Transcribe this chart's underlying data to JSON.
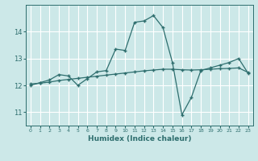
{
  "xlabel": "Humidex (Indice chaleur)",
  "bg_color": "#cce8e8",
  "grid_color": "#ffffff",
  "line_color": "#2e6e6e",
  "xlim": [
    -0.5,
    23.5
  ],
  "ylim": [
    10.5,
    15.0
  ],
  "yticks": [
    11,
    12,
    13,
    14
  ],
  "xticks": [
    0,
    1,
    2,
    3,
    4,
    5,
    6,
    7,
    8,
    9,
    10,
    11,
    12,
    13,
    14,
    15,
    16,
    17,
    18,
    19,
    20,
    21,
    22,
    23
  ],
  "series1_x": [
    0,
    1,
    2,
    3,
    4,
    5,
    6,
    7,
    8,
    9,
    10,
    11,
    12,
    13,
    14,
    15,
    16,
    17,
    18,
    19,
    20,
    21,
    22,
    23
  ],
  "series1_y": [
    12.0,
    12.1,
    12.2,
    12.4,
    12.35,
    12.0,
    12.25,
    12.5,
    12.55,
    13.35,
    13.3,
    14.35,
    14.4,
    14.6,
    14.15,
    12.85,
    10.9,
    11.55,
    12.55,
    12.65,
    12.75,
    12.85,
    13.0,
    12.45
  ],
  "series2_x": [
    0,
    1,
    2,
    3,
    4,
    5,
    6,
    7,
    8,
    9,
    10,
    11,
    12,
    13,
    14,
    15,
    16,
    17,
    18,
    19,
    20,
    21,
    22,
    23
  ],
  "series2_y": [
    12.05,
    12.08,
    12.12,
    12.18,
    12.22,
    12.26,
    12.3,
    12.34,
    12.38,
    12.42,
    12.46,
    12.5,
    12.54,
    12.57,
    12.6,
    12.6,
    12.58,
    12.57,
    12.58,
    12.6,
    12.62,
    12.63,
    12.65,
    12.48
  ]
}
